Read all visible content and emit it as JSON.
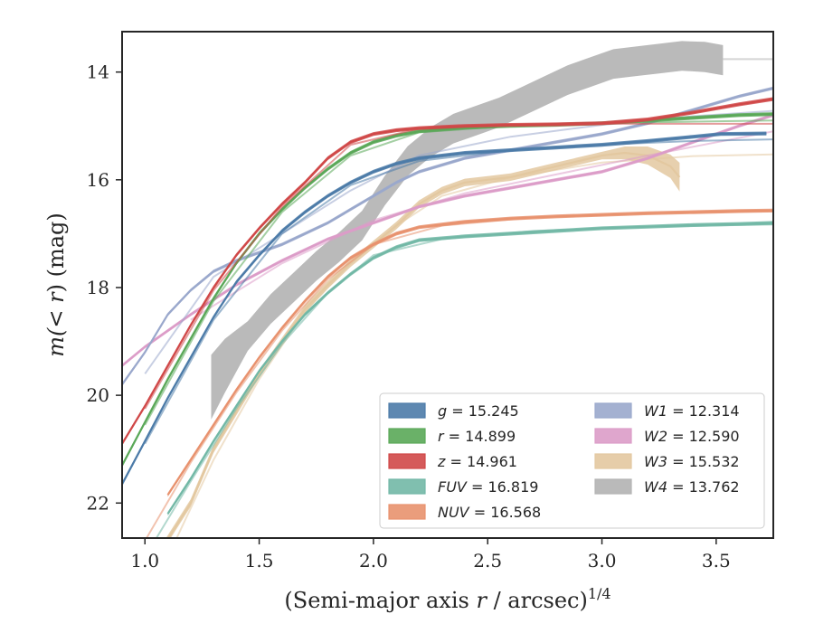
{
  "chart_data": {
    "type": "line",
    "title": "",
    "xlabel": "(Semi-major axis r / arcsec)",
    "xlabel_italic": "r",
    "xlabel_prefix": "(Semi-major axis ",
    "xlabel_suffix": " / arcsec)",
    "xlabel_superscript": "1/4",
    "ylabel_prefix": "m(",
    "ylabel_italic": "< r",
    "ylabel_suffix": ") (mag)",
    "xlim": [
      0.9,
      3.75
    ],
    "ylim": [
      22.65,
      13.25
    ],
    "y_inverted": true,
    "xticks": [
      1.0,
      1.5,
      2.0,
      2.5,
      3.0,
      3.5
    ],
    "xtick_labels": [
      "1.0",
      "1.5",
      "2.0",
      "2.5",
      "3.0",
      "3.5"
    ],
    "yticks": [
      14,
      16,
      18,
      20,
      22
    ],
    "ytick_labels": [
      "14",
      "16",
      "18",
      "20",
      "22"
    ],
    "grid": false,
    "legend_position": "lower-right",
    "series": [
      {
        "name": "g",
        "label_value": "15.245",
        "color": "#4c7ba8",
        "band_width": 0.07,
        "points": [
          [
            0.9,
            21.65
          ],
          [
            1.0,
            20.85
          ],
          [
            1.1,
            20.05
          ],
          [
            1.2,
            19.3
          ],
          [
            1.3,
            18.55
          ],
          [
            1.4,
            17.9
          ],
          [
            1.5,
            17.4
          ],
          [
            1.6,
            16.95
          ],
          [
            1.7,
            16.6
          ],
          [
            1.8,
            16.3
          ],
          [
            1.9,
            16.05
          ],
          [
            2.0,
            15.85
          ],
          [
            2.1,
            15.7
          ],
          [
            2.2,
            15.6
          ],
          [
            2.4,
            15.5
          ],
          [
            2.6,
            15.45
          ],
          [
            2.8,
            15.4
          ],
          [
            3.0,
            15.35
          ],
          [
            3.2,
            15.28
          ],
          [
            3.4,
            15.2
          ],
          [
            3.52,
            15.15
          ],
          [
            3.72,
            15.14
          ]
        ],
        "model_points": [
          [
            1.0,
            20.9
          ],
          [
            1.3,
            18.6
          ],
          [
            1.6,
            17.0
          ],
          [
            1.9,
            16.1
          ],
          [
            2.2,
            15.65
          ],
          [
            2.6,
            15.45
          ],
          [
            3.0,
            15.35
          ],
          [
            3.4,
            15.28
          ],
          [
            3.75,
            15.25
          ]
        ]
      },
      {
        "name": "r",
        "label_value": "14.899",
        "color": "#5aa858",
        "band_width": 0.07,
        "points": [
          [
            0.9,
            21.3
          ],
          [
            1.0,
            20.5
          ],
          [
            1.1,
            19.7
          ],
          [
            1.2,
            18.95
          ],
          [
            1.3,
            18.2
          ],
          [
            1.4,
            17.55
          ],
          [
            1.5,
            17.0
          ],
          [
            1.6,
            16.55
          ],
          [
            1.7,
            16.15
          ],
          [
            1.8,
            15.8
          ],
          [
            1.9,
            15.5
          ],
          [
            2.0,
            15.3
          ],
          [
            2.1,
            15.18
          ],
          [
            2.2,
            15.1
          ],
          [
            2.4,
            15.03
          ],
          [
            2.6,
            15.0
          ],
          [
            2.8,
            14.98
          ],
          [
            3.0,
            14.95
          ],
          [
            3.2,
            14.9
          ],
          [
            3.4,
            14.85
          ],
          [
            3.6,
            14.8
          ],
          [
            3.75,
            14.78
          ]
        ],
        "model_points": [
          [
            1.0,
            20.55
          ],
          [
            1.3,
            18.25
          ],
          [
            1.6,
            16.6
          ],
          [
            1.9,
            15.55
          ],
          [
            2.2,
            15.12
          ],
          [
            2.6,
            15.0
          ],
          [
            3.0,
            14.95
          ],
          [
            3.4,
            14.92
          ],
          [
            3.75,
            14.9
          ]
        ]
      },
      {
        "name": "z",
        "label_value": "14.961",
        "color": "#d04848",
        "band_width": 0.07,
        "points": [
          [
            0.9,
            20.9
          ],
          [
            1.0,
            20.2
          ],
          [
            1.1,
            19.45
          ],
          [
            1.2,
            18.7
          ],
          [
            1.3,
            18.0
          ],
          [
            1.4,
            17.4
          ],
          [
            1.5,
            16.9
          ],
          [
            1.6,
            16.45
          ],
          [
            1.7,
            16.05
          ],
          [
            1.8,
            15.6
          ],
          [
            1.9,
            15.3
          ],
          [
            2.0,
            15.15
          ],
          [
            2.1,
            15.08
          ],
          [
            2.2,
            15.04
          ],
          [
            2.4,
            15.0
          ],
          [
            2.6,
            14.98
          ],
          [
            2.8,
            14.97
          ],
          [
            3.0,
            14.95
          ],
          [
            3.2,
            14.88
          ],
          [
            3.4,
            14.75
          ],
          [
            3.6,
            14.6
          ],
          [
            3.75,
            14.5
          ]
        ],
        "model_points": [
          [
            1.0,
            20.25
          ],
          [
            1.3,
            18.05
          ],
          [
            1.6,
            16.5
          ],
          [
            1.9,
            15.35
          ],
          [
            2.2,
            15.05
          ],
          [
            2.6,
            14.98
          ],
          [
            3.0,
            14.96
          ],
          [
            3.4,
            14.96
          ],
          [
            3.75,
            14.96
          ]
        ]
      },
      {
        "name": "FUV",
        "label_value": "16.819",
        "color": "#72b8a6",
        "band_width": 0.07,
        "points": [
          [
            1.1,
            22.2
          ],
          [
            1.2,
            21.55
          ],
          [
            1.3,
            20.85
          ],
          [
            1.4,
            20.2
          ],
          [
            1.5,
            19.55
          ],
          [
            1.6,
            19.0
          ],
          [
            1.7,
            18.5
          ],
          [
            1.8,
            18.1
          ],
          [
            1.9,
            17.75
          ],
          [
            2.0,
            17.45
          ],
          [
            2.1,
            17.25
          ],
          [
            2.2,
            17.12
          ],
          [
            2.4,
            17.05
          ],
          [
            2.6,
            17.0
          ],
          [
            2.8,
            16.95
          ],
          [
            3.0,
            16.9
          ],
          [
            3.2,
            16.87
          ],
          [
            3.4,
            16.84
          ],
          [
            3.6,
            16.82
          ],
          [
            3.75,
            16.8
          ]
        ],
        "model_points": [
          [
            1.0,
            23.0
          ],
          [
            1.2,
            21.6
          ],
          [
            1.4,
            20.25
          ],
          [
            1.6,
            19.05
          ],
          [
            1.8,
            18.1
          ],
          [
            2.0,
            17.4
          ],
          [
            2.3,
            17.1
          ],
          [
            2.7,
            16.95
          ],
          [
            3.2,
            16.87
          ],
          [
            3.75,
            16.83
          ]
        ]
      },
      {
        "name": "NUV",
        "label_value": "16.568",
        "color": "#e8926e",
        "band_width": 0.07,
        "points": [
          [
            1.1,
            21.85
          ],
          [
            1.2,
            21.2
          ],
          [
            1.3,
            20.55
          ],
          [
            1.4,
            19.9
          ],
          [
            1.5,
            19.3
          ],
          [
            1.6,
            18.75
          ],
          [
            1.7,
            18.25
          ],
          [
            1.8,
            17.8
          ],
          [
            1.9,
            17.45
          ],
          [
            2.0,
            17.2
          ],
          [
            2.1,
            17.0
          ],
          [
            2.2,
            16.88
          ],
          [
            2.4,
            16.78
          ],
          [
            2.6,
            16.72
          ],
          [
            2.8,
            16.68
          ],
          [
            3.0,
            16.65
          ],
          [
            3.2,
            16.62
          ],
          [
            3.4,
            16.6
          ],
          [
            3.6,
            16.58
          ],
          [
            3.75,
            16.57
          ]
        ],
        "model_points": [
          [
            1.0,
            22.7
          ],
          [
            1.2,
            21.25
          ],
          [
            1.4,
            19.95
          ],
          [
            1.6,
            18.8
          ],
          [
            1.8,
            17.85
          ],
          [
            2.0,
            17.2
          ],
          [
            2.3,
            16.85
          ],
          [
            2.7,
            16.7
          ],
          [
            3.2,
            16.62
          ],
          [
            3.75,
            16.58
          ]
        ]
      },
      {
        "name": "W1",
        "label_value": "12.314",
        "color": "#9aa8cc",
        "band_width": 0.06,
        "points": [
          [
            0.9,
            19.8
          ],
          [
            1.0,
            19.2
          ],
          [
            1.1,
            18.5
          ],
          [
            1.2,
            18.05
          ],
          [
            1.3,
            17.7
          ],
          [
            1.4,
            17.5
          ],
          [
            1.5,
            17.35
          ],
          [
            1.6,
            17.2
          ],
          [
            1.7,
            17.0
          ],
          [
            1.8,
            16.8
          ],
          [
            1.9,
            16.55
          ],
          [
            2.0,
            16.3
          ],
          [
            2.1,
            16.05
          ],
          [
            2.2,
            15.85
          ],
          [
            2.4,
            15.6
          ],
          [
            2.6,
            15.45
          ],
          [
            2.8,
            15.3
          ],
          [
            3.0,
            15.15
          ],
          [
            3.2,
            14.95
          ],
          [
            3.4,
            14.7
          ],
          [
            3.6,
            14.45
          ],
          [
            3.75,
            14.3
          ]
        ],
        "model_points": [
          [
            1.0,
            19.6
          ],
          [
            1.3,
            17.8
          ],
          [
            1.6,
            17.0
          ],
          [
            1.9,
            16.2
          ],
          [
            2.2,
            15.55
          ],
          [
            2.6,
            15.2
          ],
          [
            3.0,
            14.98
          ],
          [
            3.4,
            14.82
          ],
          [
            3.75,
            14.72
          ]
        ]
      },
      {
        "name": "W2",
        "label_value": "12.590",
        "color": "#dc9cc8",
        "band_width": 0.06,
        "points": [
          [
            0.9,
            19.45
          ],
          [
            1.0,
            19.1
          ],
          [
            1.2,
            18.5
          ],
          [
            1.4,
            17.95
          ],
          [
            1.6,
            17.5
          ],
          [
            1.8,
            17.1
          ],
          [
            2.0,
            16.8
          ],
          [
            2.2,
            16.5
          ],
          [
            2.4,
            16.3
          ],
          [
            2.6,
            16.15
          ],
          [
            2.8,
            16.0
          ],
          [
            3.0,
            15.85
          ],
          [
            3.2,
            15.6
          ],
          [
            3.4,
            15.3
          ],
          [
            3.6,
            15.0
          ],
          [
            3.75,
            14.8
          ]
        ],
        "model_points": [
          [
            1.2,
            18.6
          ],
          [
            1.6,
            17.55
          ],
          [
            2.0,
            16.75
          ],
          [
            2.4,
            16.25
          ],
          [
            2.8,
            15.9
          ],
          [
            3.2,
            15.55
          ],
          [
            3.75,
            15.1
          ]
        ]
      },
      {
        "name": "W3",
        "label_value": "15.532",
        "color": "#e3c8a0",
        "band_width": 0.14,
        "points": [
          [
            1.05,
            23.0
          ],
          [
            1.2,
            22.0
          ],
          [
            1.3,
            21.0
          ],
          [
            1.4,
            20.3
          ],
          [
            1.5,
            19.6
          ],
          [
            1.6,
            19.0
          ],
          [
            1.7,
            18.4
          ],
          [
            1.8,
            17.95
          ],
          [
            1.9,
            17.55
          ],
          [
            2.0,
            17.2
          ],
          [
            2.1,
            16.85
          ],
          [
            2.2,
            16.45
          ],
          [
            2.3,
            16.2
          ],
          [
            2.4,
            16.05
          ],
          [
            2.5,
            16.0
          ],
          [
            2.6,
            15.95
          ],
          [
            2.7,
            15.85
          ],
          [
            2.8,
            15.75
          ],
          [
            2.9,
            15.65
          ],
          [
            3.0,
            15.55
          ],
          [
            3.1,
            15.5
          ],
          [
            3.2,
            15.55
          ],
          [
            3.3,
            15.75
          ],
          [
            3.34,
            15.95
          ]
        ],
        "widen_end": true,
        "model_points": [
          [
            1.1,
            23.0
          ],
          [
            1.3,
            21.2
          ],
          [
            1.5,
            19.7
          ],
          [
            1.7,
            18.45
          ],
          [
            1.9,
            17.55
          ],
          [
            2.1,
            16.85
          ],
          [
            2.3,
            16.3
          ],
          [
            2.6,
            15.95
          ],
          [
            3.0,
            15.68
          ],
          [
            3.4,
            15.56
          ],
          [
            3.75,
            15.53
          ]
        ]
      },
      {
        "name": "W4",
        "label_value": "13.762",
        "color": "#b3b3b3",
        "band_width": 0.55,
        "points": [
          [
            1.29,
            19.85
          ],
          [
            1.35,
            19.45
          ],
          [
            1.45,
            18.9
          ],
          [
            1.55,
            18.4
          ],
          [
            1.65,
            18.0
          ],
          [
            1.75,
            17.6
          ],
          [
            1.85,
            17.25
          ],
          [
            1.95,
            16.85
          ],
          [
            2.05,
            16.2
          ],
          [
            2.15,
            15.65
          ],
          [
            2.25,
            15.3
          ],
          [
            2.35,
            15.05
          ],
          [
            2.45,
            14.9
          ],
          [
            2.55,
            14.75
          ],
          [
            2.65,
            14.55
          ],
          [
            2.75,
            14.35
          ],
          [
            2.85,
            14.15
          ],
          [
            2.95,
            14.0
          ],
          [
            3.05,
            13.85
          ],
          [
            3.15,
            13.8
          ],
          [
            3.25,
            13.75
          ],
          [
            3.35,
            13.7
          ],
          [
            3.45,
            13.72
          ],
          [
            3.53,
            13.78
          ]
        ],
        "model_points": [
          [
            3.53,
            13.76
          ],
          [
            3.75,
            13.76
          ]
        ]
      }
    ]
  }
}
